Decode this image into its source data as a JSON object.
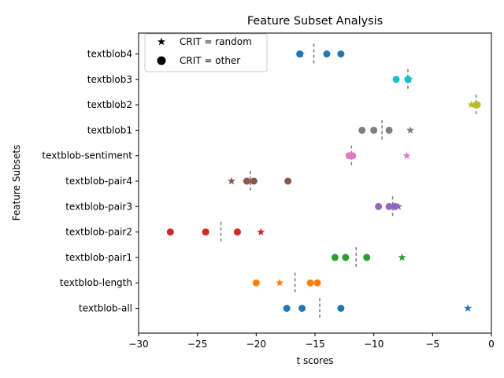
{
  "chart_data": {
    "type": "scatter",
    "title": "Feature Subset Analysis",
    "xlabel": "t scores",
    "ylabel": "Feature Subsets",
    "xlim": [
      -30,
      0
    ],
    "xticks": [
      -30,
      -25,
      -20,
      -15,
      -10,
      -5,
      0
    ],
    "xtick_labels": [
      "−30",
      "−25",
      "−20",
      "−15",
      "−10",
      "−5",
      "0"
    ],
    "legend": {
      "placement": "upper-left",
      "entries": [
        {
          "marker": "star",
          "label": "CRIT = random"
        },
        {
          "marker": "circle",
          "label": "CRIT = other"
        }
      ]
    },
    "categories": [
      "textblob4",
      "textblob3",
      "textblob2",
      "textblob1",
      "textblob-sentiment",
      "textblob-pair4",
      "textblob-pair3",
      "textblob-pair2",
      "textblob-pair1",
      "textblob-length",
      "textblob-all"
    ],
    "series": [
      {
        "category": "textblob4",
        "color": "#1f77b4",
        "other": [
          -16.3,
          -14.0,
          -12.8
        ],
        "random": [
          -16.2
        ],
        "median": -15.1
      },
      {
        "category": "textblob3",
        "color": "#17becf",
        "other": [
          -8.1,
          -7.1
        ],
        "random": [
          -7.0
        ],
        "median": -7.1
      },
      {
        "category": "textblob2",
        "color": "#bcbd22",
        "other": [
          -1.2,
          -1.3
        ],
        "random": [
          -1.7
        ],
        "median": -1.3
      },
      {
        "category": "textblob1",
        "color": "#7f7f7f",
        "other": [
          -11.0,
          -10.0,
          -8.7
        ],
        "random": [
          -6.9
        ],
        "median": -9.3
      },
      {
        "category": "textblob-sentiment",
        "color": "#e377c2",
        "other": [
          -12.1,
          -11.8
        ],
        "random": [
          -7.2
        ],
        "median": -11.9
      },
      {
        "category": "textblob-pair4",
        "color": "#8c564b",
        "other": [
          -20.8,
          -20.2,
          -17.3
        ],
        "random": [
          -22.1
        ],
        "median": -20.5
      },
      {
        "category": "textblob-pair3",
        "color": "#9467bd",
        "other": [
          -9.6,
          -8.7,
          -8.2
        ],
        "random": [
          -7.9
        ],
        "median": -8.4
      },
      {
        "category": "textblob-pair2",
        "color": "#d62728",
        "other": [
          -27.3,
          -24.3,
          -21.6
        ],
        "random": [
          -19.6
        ],
        "median": -23.0
      },
      {
        "category": "textblob-pair1",
        "color": "#2ca02c",
        "other": [
          -13.3,
          -12.4,
          -10.6
        ],
        "random": [
          -7.6
        ],
        "median": -11.5
      },
      {
        "category": "textblob-length",
        "color": "#ff7f0e",
        "other": [
          -20.0,
          -15.4,
          -14.8
        ],
        "random": [
          -18.0
        ],
        "median": -16.7
      },
      {
        "category": "textblob-all",
        "color": "#1f77b4",
        "other": [
          -17.4,
          -16.1,
          -12.8
        ],
        "random": [
          -2.0
        ],
        "median": -14.6
      }
    ]
  }
}
